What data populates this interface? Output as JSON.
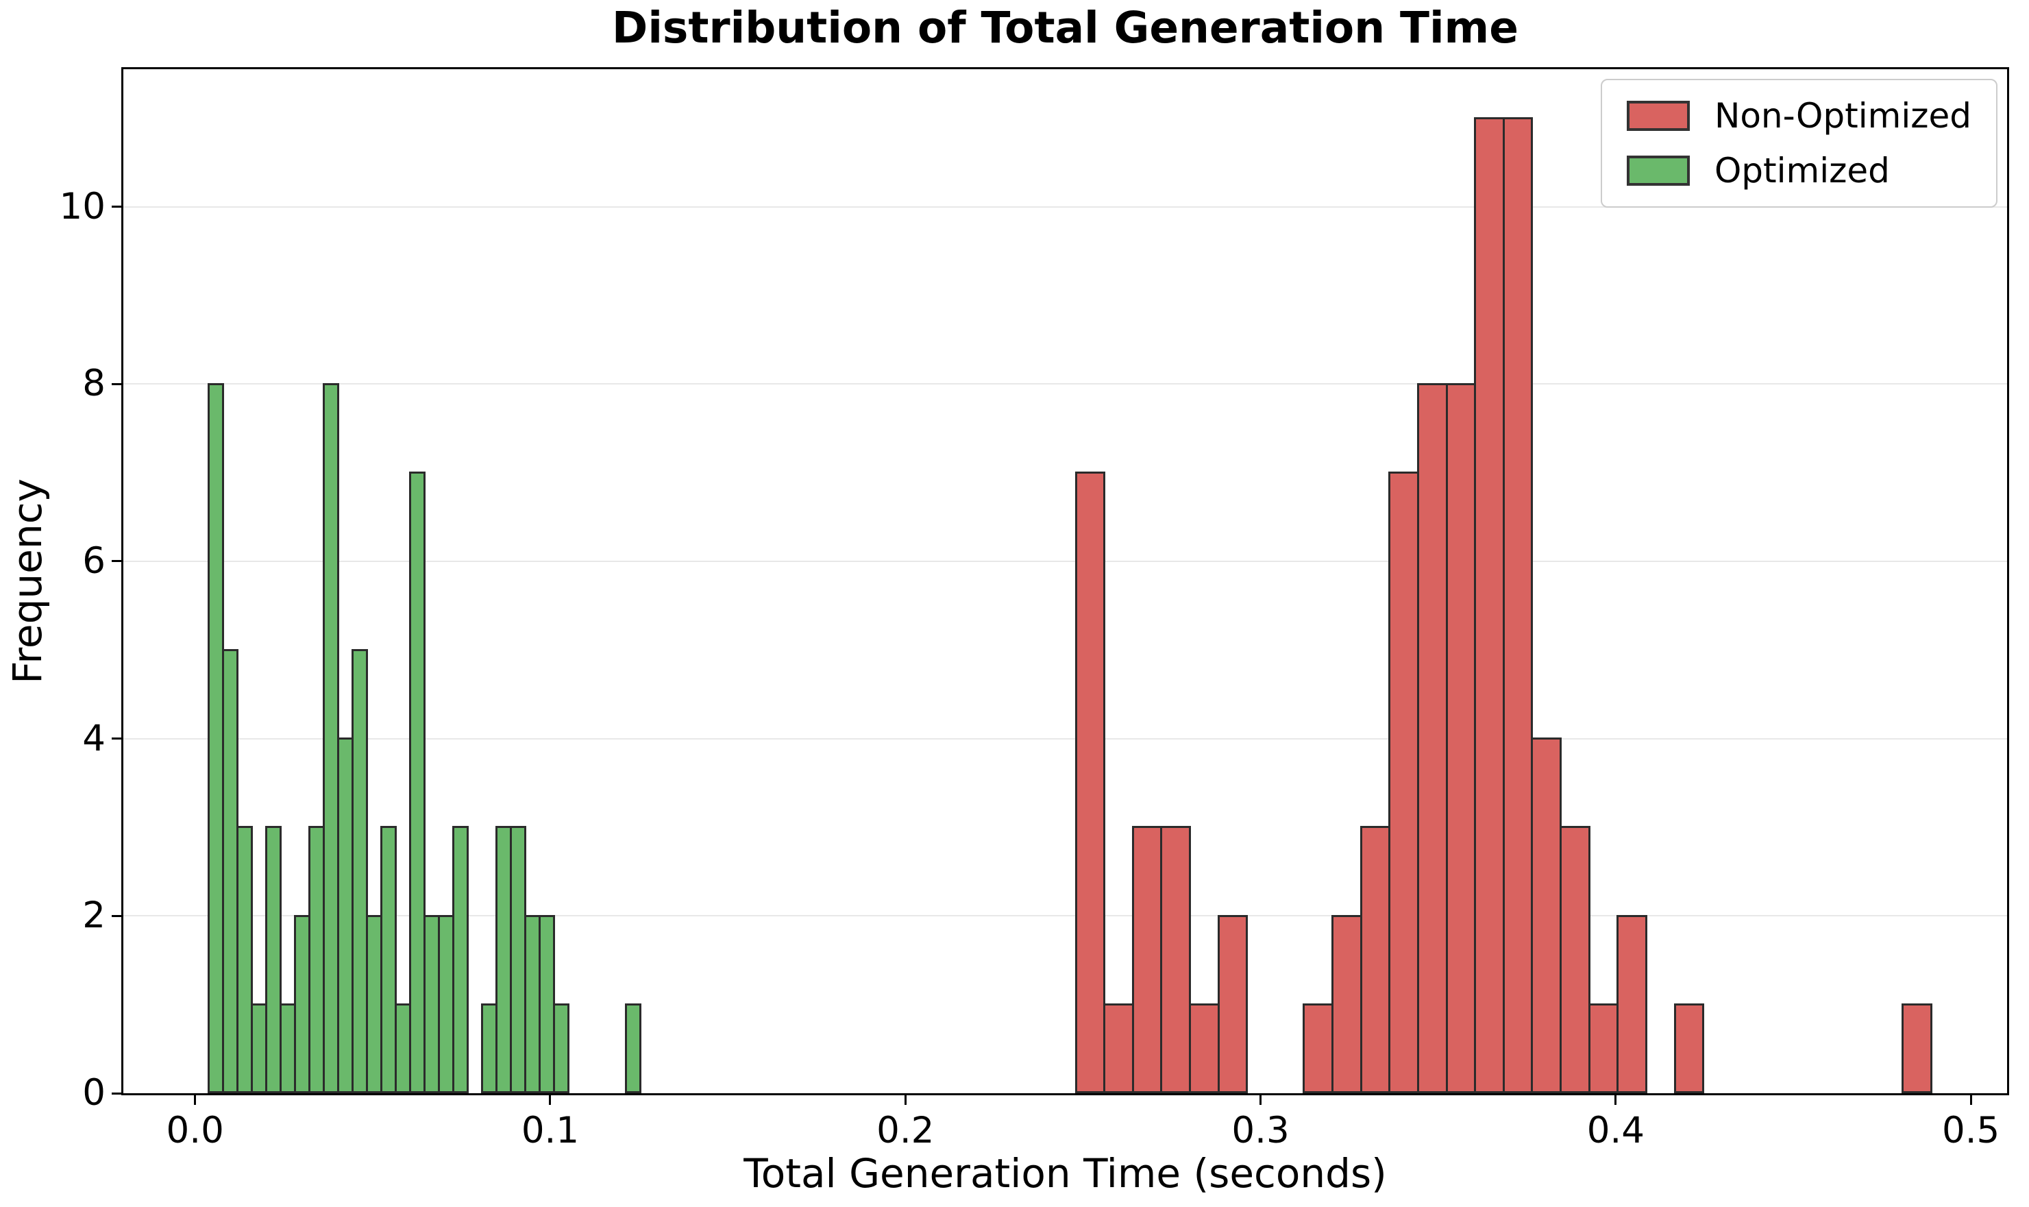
{
  "chart_data": {
    "type": "histogram",
    "title": "Distribution of Total Generation Time",
    "xlabel": "Total Generation Time (seconds)",
    "ylabel": "Frequency",
    "xlim": [
      -0.0202,
      0.5102
    ],
    "ylim": [
      0,
      11.55
    ],
    "x_ticks": [
      0.0,
      0.1,
      0.2,
      0.3,
      0.4,
      0.5
    ],
    "x_tick_labels": [
      "0.0",
      "0.1",
      "0.2",
      "0.3",
      "0.4",
      "0.5"
    ],
    "y_ticks": [
      0,
      2,
      4,
      6,
      8,
      10
    ],
    "y_tick_labels": [
      "0",
      "2",
      "4",
      "6",
      "8",
      "10"
    ],
    "grid": "horizontal-only",
    "legend_position": "upper-right",
    "series": [
      {
        "name": "Non-Optimized",
        "fill_color": "#d96360",
        "edge_color": "#2b2b2b",
        "bin_start": 0.248,
        "bin_width": 0.00803,
        "counts": [
          7,
          1,
          3,
          3,
          1,
          2,
          0,
          0,
          1,
          2,
          3,
          7,
          8,
          8,
          11,
          11,
          4,
          3,
          1,
          2,
          0,
          1,
          0,
          0,
          0,
          0,
          0,
          0,
          0,
          1
        ]
      },
      {
        "name": "Optimized",
        "fill_color": "#6ab96b",
        "edge_color": "#2b2b2b",
        "bin_start": 0.0039,
        "bin_width": 0.00405,
        "counts": [
          8,
          5,
          3,
          1,
          3,
          1,
          2,
          3,
          8,
          4,
          5,
          2,
          3,
          1,
          7,
          2,
          2,
          3,
          0,
          1,
          3,
          3,
          2,
          2,
          1,
          0,
          0,
          0,
          0,
          1
        ]
      }
    ]
  }
}
